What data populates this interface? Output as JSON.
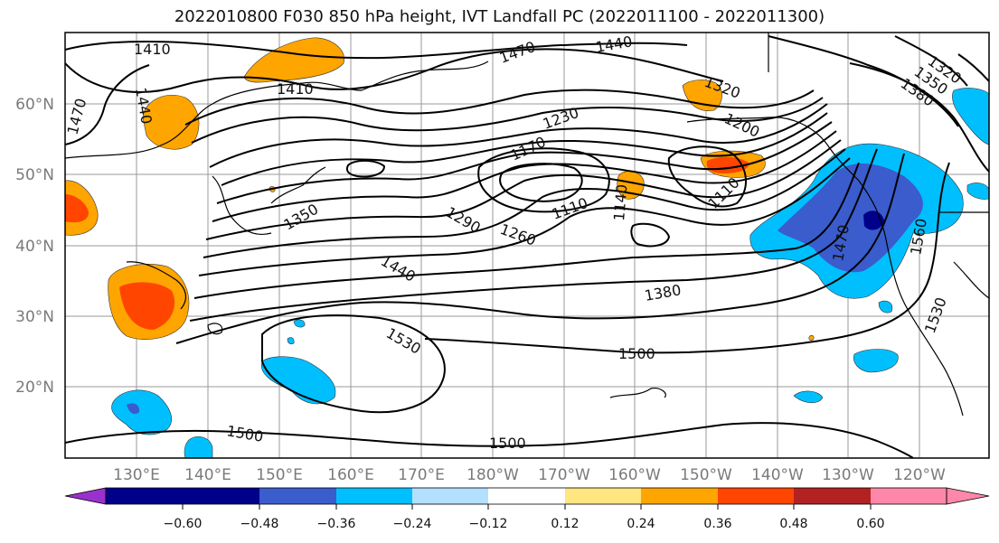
{
  "title": "2022010800 F030 850 hPa height, IVT Landfall PC (2022011100 - 2022011300)",
  "lat_ticks": [
    "60°N",
    "50°N",
    "40°N",
    "30°N",
    "20°N"
  ],
  "lon_ticks": [
    "130°E",
    "140°E",
    "150°E",
    "160°E",
    "170°E",
    "180°W",
    "170°W",
    "160°W",
    "150°W",
    "140°W",
    "130°W",
    "120°W"
  ],
  "colorbar": {
    "ticks": [
      "−0.60",
      "−0.48",
      "−0.36",
      "−0.24",
      "−0.12",
      "0.12",
      "0.24",
      "0.36",
      "0.48",
      "0.60"
    ],
    "colors": [
      "#9932cc",
      "#00008b",
      "#3a5ccc",
      "#00bfff",
      "#b3e0ff",
      "#ffffff",
      "#ffe680",
      "#ffa500",
      "#ff4500",
      "#b22222",
      "#ff88aa"
    ]
  },
  "contour_labels": [
    "1410",
    "1410",
    "1440",
    "1470",
    "1470",
    "1440",
    "1320",
    "1350",
    "1380",
    "1320",
    "1200",
    "1230",
    "1170",
    "1350",
    "1290",
    "1260",
    "1110",
    "1140",
    "1110",
    "1440",
    "1380",
    "1470",
    "1560",
    "1530",
    "1530",
    "1500",
    "1500",
    "1500"
  ]
}
